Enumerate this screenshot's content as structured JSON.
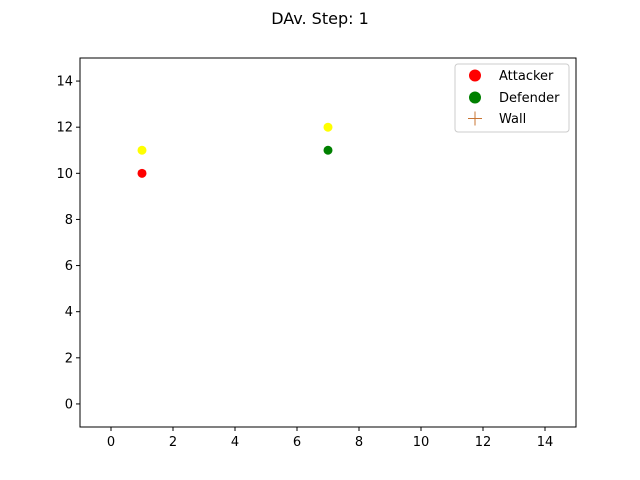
{
  "chart_data": {
    "type": "scatter",
    "title": "DAv. Step: 1",
    "xlabel": "",
    "ylabel": "",
    "xlim": [
      -1,
      15
    ],
    "ylim": [
      -1,
      15
    ],
    "xticks": [
      0,
      2,
      4,
      6,
      8,
      10,
      12,
      14
    ],
    "yticks": [
      0,
      2,
      4,
      6,
      8,
      10,
      12,
      14
    ],
    "grid": false,
    "legend_position": "top-right",
    "legend": [
      {
        "label": "Attacker",
        "marker": "circle",
        "color": "#ff0000"
      },
      {
        "label": "Defender",
        "marker": "circle",
        "color": "#008000"
      },
      {
        "label": "Wall",
        "marker": "plus",
        "color": "#c87533"
      }
    ],
    "points": [
      {
        "x": 1,
        "y": 11,
        "color": "#ffff00",
        "marker": "circle"
      },
      {
        "x": 1,
        "y": 10,
        "color": "#ff0000",
        "marker": "circle"
      },
      {
        "x": 7,
        "y": 12,
        "color": "#ffff00",
        "marker": "circle"
      },
      {
        "x": 7,
        "y": 11,
        "color": "#008000",
        "marker": "circle"
      }
    ]
  }
}
